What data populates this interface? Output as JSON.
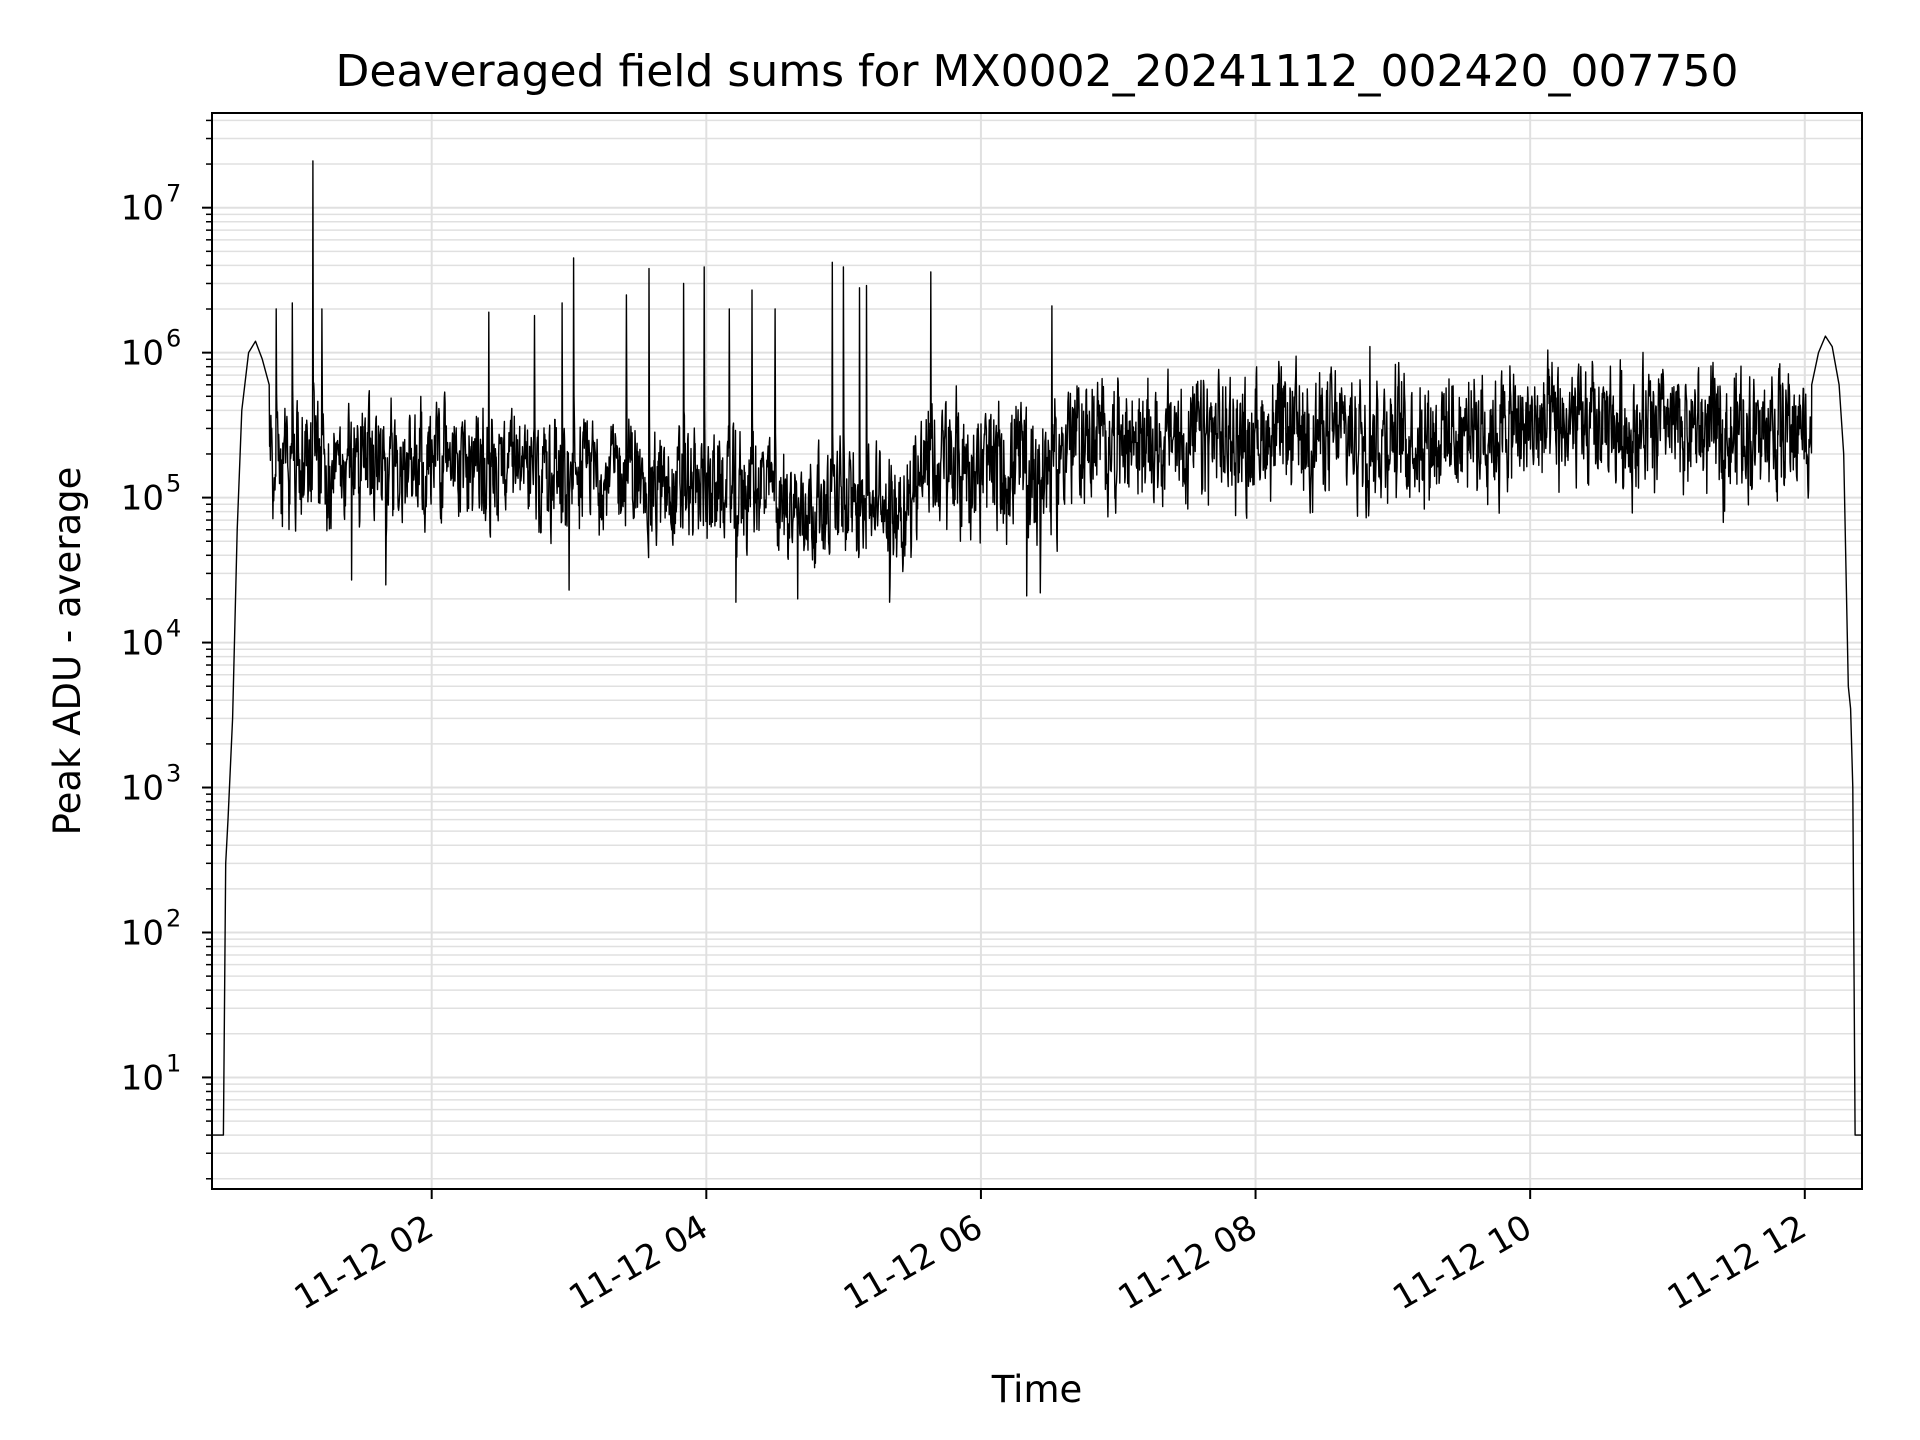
{
  "chart_data": {
    "type": "line",
    "title": "Deaveraged field sums for MX0002_20241112_002420_007750",
    "xlabel": "Time",
    "ylabel": "Peak ADU - average",
    "xscale": "time",
    "yscale": "log",
    "xlim": [
      "2024-11-12 00:24",
      "2024-11-12 12:25"
    ],
    "ylim": [
      1.7,
      45000000
    ],
    "x_ticks": [
      {
        "value": "2024-11-12 02:00",
        "label": "11-12 02"
      },
      {
        "value": "2024-11-12 04:00",
        "label": "11-12 04"
      },
      {
        "value": "2024-11-12 06:00",
        "label": "11-12 06"
      },
      {
        "value": "2024-11-12 08:00",
        "label": "11-12 08"
      },
      {
        "value": "2024-11-12 10:00",
        "label": "11-12 10"
      },
      {
        "value": "2024-11-12 12:00",
        "label": "11-12 12"
      }
    ],
    "y_ticks": [
      {
        "value": 10,
        "base": "10",
        "exp": "1"
      },
      {
        "value": 100,
        "base": "10",
        "exp": "2"
      },
      {
        "value": 1000,
        "base": "10",
        "exp": "3"
      },
      {
        "value": 10000,
        "base": "10",
        "exp": "4"
      },
      {
        "value": 100000,
        "base": "10",
        "exp": "5"
      },
      {
        "value": 1000000,
        "base": "10",
        "exp": "6"
      },
      {
        "value": 10000000,
        "base": "10",
        "exp": "7"
      }
    ],
    "grid": true,
    "line_color": "#000000",
    "grid_color": "#e0e0e0",
    "series": [
      {
        "color": "#000000",
        "points": [
          [
            "2024-11-12 00:24",
            4
          ],
          [
            "2024-11-12 00:29",
            4
          ],
          [
            "2024-11-12 00:30",
            300
          ],
          [
            "2024-11-12 00:31",
            600
          ],
          [
            "2024-11-12 00:33",
            3000
          ],
          [
            "2024-11-12 00:35",
            60000
          ],
          [
            "2024-11-12 00:37",
            400000
          ],
          [
            "2024-11-12 00:40",
            1000000
          ],
          [
            "2024-11-12 00:43",
            1200000
          ],
          [
            "2024-11-12 00:46",
            900000
          ],
          [
            "2024-11-12 00:49",
            600000
          ],
          [
            "2024-11-12 12:03",
            600000
          ],
          [
            "2024-11-12 12:06",
            1000000
          ],
          [
            "2024-11-12 12:09",
            1300000
          ],
          [
            "2024-11-12 12:12",
            1100000
          ],
          [
            "2024-11-12 12:15",
            600000
          ],
          [
            "2024-11-12 12:17",
            200000
          ],
          [
            "2024-11-12 12:19",
            5000
          ],
          [
            "2024-11-12 12:20",
            3500
          ],
          [
            "2024-11-12 12:21",
            1000
          ],
          [
            "2024-11-12 12:22",
            4
          ],
          [
            "2024-11-12 12:25",
            4
          ]
        ],
        "noise_bands": [
          {
            "start": "2024-11-12 00:49",
            "end": "2024-11-12 02:30",
            "low": 40000,
            "high": 550000
          },
          {
            "start": "2024-11-12 02:30",
            "end": "2024-11-12 03:30",
            "low": 40000,
            "high": 450000
          },
          {
            "start": "2024-11-12 03:30",
            "end": "2024-11-12 04:30",
            "low": 28000,
            "high": 350000
          },
          {
            "start": "2024-11-12 04:30",
            "end": "2024-11-12 05:30",
            "low": 25000,
            "high": 250000
          },
          {
            "start": "2024-11-12 05:30",
            "end": "2024-11-12 06:35",
            "low": 28000,
            "high": 650000
          },
          {
            "start": "2024-11-12 06:35",
            "end": "2024-11-12 08:00",
            "low": 55000,
            "high": 850000
          },
          {
            "start": "2024-11-12 08:00",
            "end": "2024-11-12 09:30",
            "low": 60000,
            "high": 950000
          },
          {
            "start": "2024-11-12 09:30",
            "end": "2024-11-12 12:03",
            "low": 65000,
            "high": 1000000
          }
        ],
        "spikes": [
          [
            "2024-11-12 01:08",
            21000000
          ],
          [
            "2024-11-12 01:12",
            2000000
          ],
          [
            "2024-11-12 00:59",
            2200000
          ],
          [
            "2024-11-12 00:52",
            2000000
          ],
          [
            "2024-11-12 01:40",
            1100000
          ],
          [
            "2024-11-12 02:25",
            1900000
          ],
          [
            "2024-11-12 02:45",
            1800000
          ],
          [
            "2024-11-12 03:02",
            4500000
          ],
          [
            "2024-11-12 02:57",
            2200000
          ],
          [
            "2024-11-12 03:25",
            2500000
          ],
          [
            "2024-11-12 03:35",
            3800000
          ],
          [
            "2024-11-12 03:50",
            3000000
          ],
          [
            "2024-11-12 03:59",
            3900000
          ],
          [
            "2024-11-12 04:10",
            2000000
          ],
          [
            "2024-11-12 04:20",
            2700000
          ],
          [
            "2024-11-12 04:30",
            2000000
          ],
          [
            "2024-11-12 04:55",
            4200000
          ],
          [
            "2024-11-12 05:00",
            3900000
          ],
          [
            "2024-11-12 05:07",
            2800000
          ],
          [
            "2024-11-12 05:10",
            2900000
          ],
          [
            "2024-11-12 05:38",
            3600000
          ],
          [
            "2024-11-12 06:31",
            2100000
          ],
          [
            "2024-11-12 08:50",
            1100000
          ],
          [
            "2024-11-12 12:07",
            1900000
          ]
        ],
        "dips": [
          [
            "2024-11-12 03:00",
            23000
          ],
          [
            "2024-11-12 04:13",
            19000
          ],
          [
            "2024-11-12 04:40",
            20000
          ],
          [
            "2024-11-12 05:20",
            19000
          ],
          [
            "2024-11-12 06:20",
            21000
          ],
          [
            "2024-11-12 06:26",
            22000
          ],
          [
            "2024-11-12 01:25",
            27000
          ],
          [
            "2024-11-12 01:40",
            25000
          ]
        ]
      }
    ]
  }
}
